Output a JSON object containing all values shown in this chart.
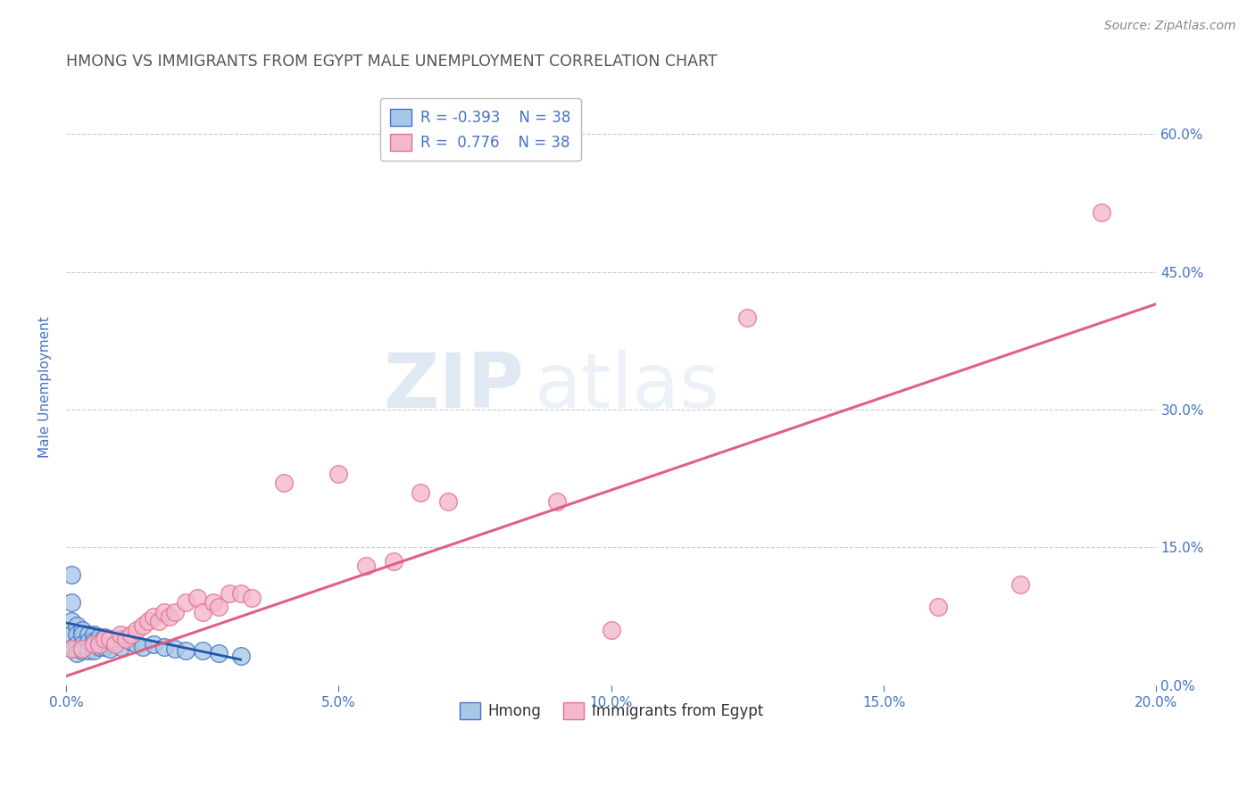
{
  "title": "HMONG VS IMMIGRANTS FROM EGYPT MALE UNEMPLOYMENT CORRELATION CHART",
  "source_text": "Source: ZipAtlas.com",
  "ylabel": "Male Unemployment",
  "x_min": 0.0,
  "x_max": 0.2,
  "y_min": 0.0,
  "y_max": 0.65,
  "x_ticks": [
    0.0,
    0.05,
    0.1,
    0.15,
    0.2
  ],
  "x_tick_labels": [
    "0.0%",
    "5.0%",
    "10.0%",
    "15.0%",
    "20.0%"
  ],
  "y_ticks_right": [
    0.0,
    0.15,
    0.3,
    0.45,
    0.6
  ],
  "y_tick_labels_right": [
    "0.0%",
    "15.0%",
    "30.0%",
    "45.0%",
    "60.0%"
  ],
  "hmong_color": "#a8c8e8",
  "egypt_color": "#f4b8cc",
  "hmong_edge_color": "#4472c4",
  "egypt_edge_color": "#e07090",
  "hmong_line_color": "#2255aa",
  "egypt_line_color": "#e06080",
  "legend_r_hmong": "R = -0.393",
  "legend_r_egypt": "R =  0.776",
  "legend_n": "N = 38",
  "watermark_zip": "ZIP",
  "watermark_atlas": "atlas",
  "title_color": "#555555",
  "tick_color": "#4472c4",
  "grid_color": "#cccccc",
  "background_color": "#ffffff",
  "hmong_x": [
    0.001,
    0.001,
    0.001,
    0.001,
    0.001,
    0.002,
    0.002,
    0.002,
    0.002,
    0.003,
    0.003,
    0.003,
    0.003,
    0.004,
    0.004,
    0.004,
    0.005,
    0.005,
    0.005,
    0.006,
    0.006,
    0.007,
    0.007,
    0.008,
    0.008,
    0.009,
    0.01,
    0.01,
    0.012,
    0.013,
    0.014,
    0.016,
    0.018,
    0.02,
    0.022,
    0.025,
    0.028,
    0.032
  ],
  "hmong_y": [
    0.12,
    0.09,
    0.07,
    0.055,
    0.04,
    0.065,
    0.055,
    0.045,
    0.035,
    0.06,
    0.055,
    0.045,
    0.038,
    0.055,
    0.048,
    0.038,
    0.055,
    0.048,
    0.038,
    0.052,
    0.042,
    0.052,
    0.042,
    0.05,
    0.04,
    0.048,
    0.05,
    0.042,
    0.048,
    0.045,
    0.042,
    0.045,
    0.042,
    0.04,
    0.038,
    0.038,
    0.035,
    0.032
  ],
  "egypt_x": [
    0.001,
    0.003,
    0.005,
    0.006,
    0.007,
    0.008,
    0.009,
    0.01,
    0.011,
    0.012,
    0.013,
    0.014,
    0.015,
    0.016,
    0.017,
    0.018,
    0.019,
    0.02,
    0.022,
    0.024,
    0.025,
    0.027,
    0.028,
    0.03,
    0.032,
    0.034,
    0.04,
    0.05,
    0.055,
    0.06,
    0.065,
    0.07,
    0.09,
    0.1,
    0.125,
    0.16,
    0.175,
    0.19
  ],
  "egypt_y": [
    0.04,
    0.04,
    0.045,
    0.045,
    0.05,
    0.05,
    0.045,
    0.055,
    0.05,
    0.055,
    0.06,
    0.065,
    0.07,
    0.075,
    0.07,
    0.08,
    0.075,
    0.08,
    0.09,
    0.095,
    0.08,
    0.09,
    0.085,
    0.1,
    0.1,
    0.095,
    0.22,
    0.23,
    0.13,
    0.135,
    0.21,
    0.2,
    0.2,
    0.06,
    0.4,
    0.085,
    0.11,
    0.515
  ],
  "hmong_line_x": [
    0.0,
    0.032
  ],
  "hmong_line_y": [
    0.068,
    0.028
  ],
  "egypt_line_x": [
    0.0,
    0.2
  ],
  "egypt_line_y": [
    0.01,
    0.415
  ]
}
